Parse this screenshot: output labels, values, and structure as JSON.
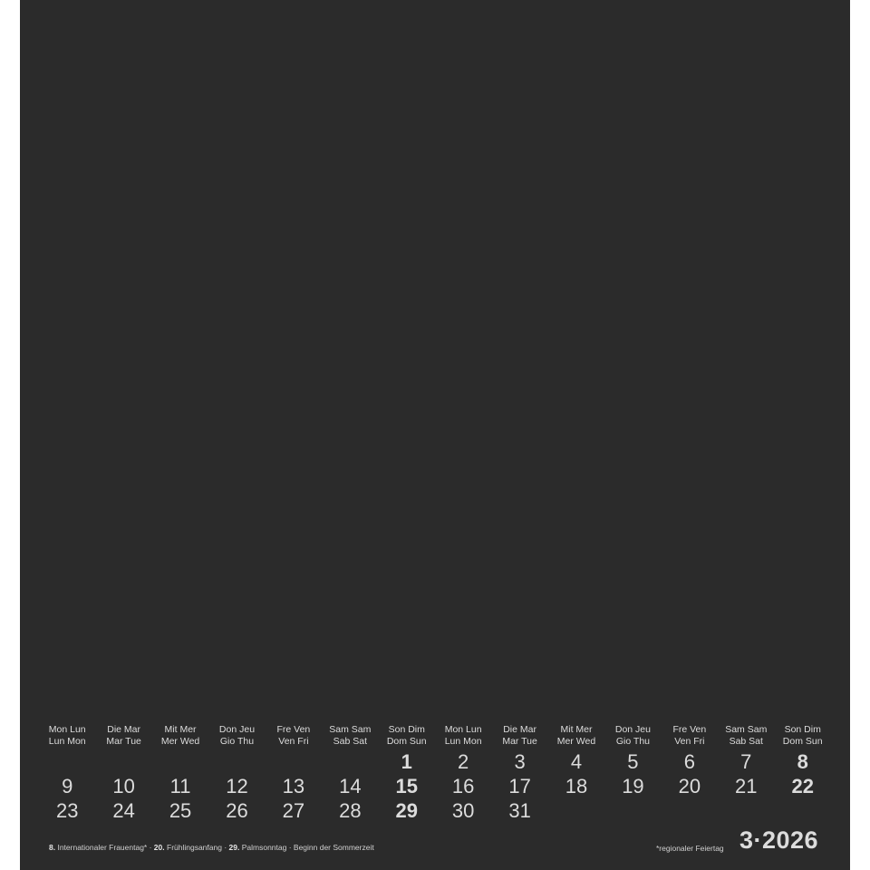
{
  "colors": {
    "background": "#2b2b2b",
    "text": "#dcdcdc"
  },
  "weekdays": [
    [
      "Mon Lun",
      "Lun Mon"
    ],
    [
      "Die Mar",
      "Mar Tue"
    ],
    [
      "Mit Mer",
      "Mer Wed"
    ],
    [
      "Don Jeu",
      "Gio Thu"
    ],
    [
      "Fre Ven",
      "Ven Fri"
    ],
    [
      "Sam Sam",
      "Sab Sat"
    ],
    [
      "Son Dim",
      "Dom Sun"
    ],
    [
      "Mon Lun",
      "Lun Mon"
    ],
    [
      "Die Mar",
      "Mar Tue"
    ],
    [
      "Mit Mer",
      "Mer Wed"
    ],
    [
      "Don Jeu",
      "Gio Thu"
    ],
    [
      "Fre Ven",
      "Ven Fri"
    ],
    [
      "Sam Sam",
      "Sab Sat"
    ],
    [
      "Son Dim",
      "Dom Sun"
    ]
  ],
  "rows": [
    [
      "",
      "",
      "",
      "",
      "",
      "",
      "1",
      "2",
      "3",
      "4",
      "5",
      "6",
      "7",
      "8"
    ],
    [
      "9",
      "10",
      "11",
      "12",
      "13",
      "14",
      "15",
      "16",
      "17",
      "18",
      "19",
      "20",
      "21",
      "22"
    ],
    [
      "23",
      "24",
      "25",
      "26",
      "27",
      "28",
      "29",
      "30",
      "31",
      "",
      "",
      "",
      "",
      ""
    ]
  ],
  "holidays": [
    {
      "day": "8.",
      "text": "Internationaler Frauentag*"
    },
    {
      "day": "20.",
      "text": "Frühlingsanfang"
    },
    {
      "day": "29.",
      "text": "Palmsonntag · Beginn der Sommerzeit"
    }
  ],
  "separator": " · ",
  "footnote": "*regionaler Feiertag",
  "month_label": "3·2026"
}
